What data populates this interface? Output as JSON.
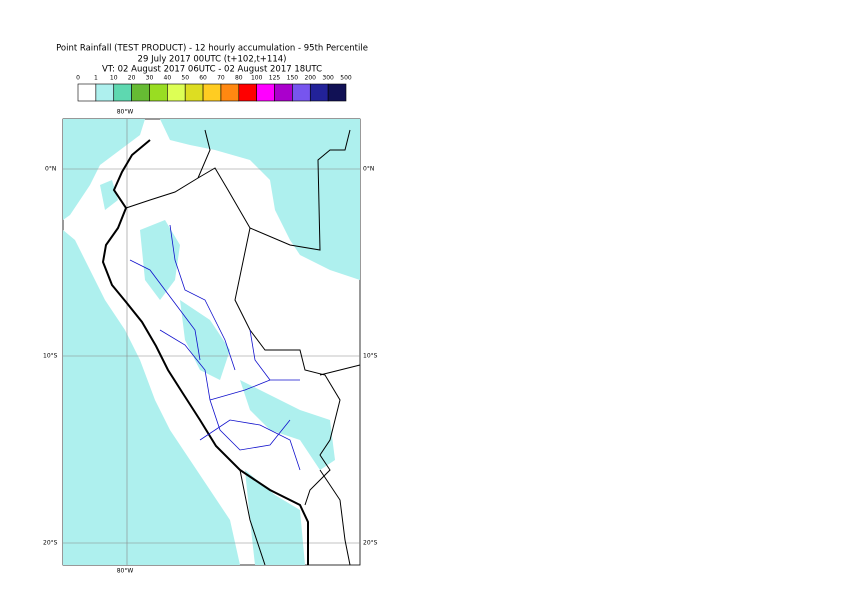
{
  "header": {
    "title": "Point Rainfall (TEST PRODUCT) - 12 hourly accumulation - 95th Percentile",
    "subtitle": "29 July 2017 00UTC (t+102,t+114)",
    "validity": "VT: 02 August 2017 06UTC - 02 August 2017 18UTC"
  },
  "legend": {
    "labels": [
      "0",
      "1",
      "10",
      "20",
      "30",
      "40",
      "50",
      "60",
      "70",
      "80",
      "100",
      "125",
      "150",
      "200",
      "300",
      "500"
    ],
    "colors": [
      "#ffffff",
      "#aef0ee",
      "#5ed8b0",
      "#66bb33",
      "#99dd22",
      "#ddff55",
      "#dddd22",
      "#ffcc22",
      "#ff8811",
      "#ff0000",
      "#ff00ff",
      "#aa00cc",
      "#7755ee",
      "#222299",
      "#111155"
    ]
  },
  "map": {
    "top_label": "80°W",
    "bottom_label": "80°W",
    "left_labels": [
      "0°N",
      "10°S",
      "20°S"
    ],
    "right_labels": [
      "0°N",
      "10°S",
      "20°S"
    ]
  }
}
